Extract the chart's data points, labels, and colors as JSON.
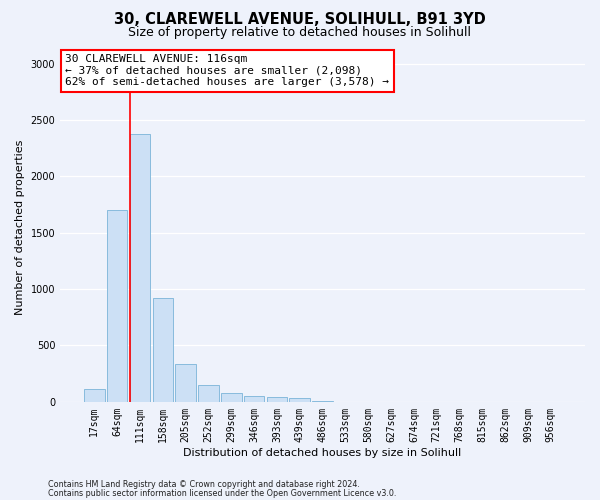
{
  "title_line1": "30, CLAREWELL AVENUE, SOLIHULL, B91 3YD",
  "title_line2": "Size of property relative to detached houses in Solihull",
  "xlabel": "Distribution of detached houses by size in Solihull",
  "ylabel": "Number of detached properties",
  "footer_line1": "Contains HM Land Registry data © Crown copyright and database right 2024.",
  "footer_line2": "Contains public sector information licensed under the Open Government Licence v3.0.",
  "bin_labels": [
    "17sqm",
    "64sqm",
    "111sqm",
    "158sqm",
    "205sqm",
    "252sqm",
    "299sqm",
    "346sqm",
    "393sqm",
    "439sqm",
    "486sqm",
    "533sqm",
    "580sqm",
    "627sqm",
    "674sqm",
    "721sqm",
    "768sqm",
    "815sqm",
    "862sqm",
    "909sqm",
    "956sqm"
  ],
  "bar_values": [
    110,
    1700,
    2380,
    920,
    340,
    150,
    80,
    55,
    40,
    35,
    5,
    0,
    0,
    0,
    0,
    0,
    0,
    0,
    0,
    0,
    0
  ],
  "bar_color": "#cce0f5",
  "bar_edge_color": "#7ab4d8",
  "ylim": [
    0,
    3100
  ],
  "yticks": [
    0,
    500,
    1000,
    1500,
    2000,
    2500,
    3000
  ],
  "annotation_text": "30 CLAREWELL AVENUE: 116sqm\n← 37% of detached houses are smaller (2,098)\n62% of semi-detached houses are larger (3,578) →",
  "red_line_bin_index": 2,
  "background_color": "#eef2fb",
  "grid_color": "#ffffff",
  "title_fontsize": 10.5,
  "subtitle_fontsize": 9,
  "axis_label_fontsize": 8,
  "tick_fontsize": 7,
  "annotation_fontsize": 8
}
